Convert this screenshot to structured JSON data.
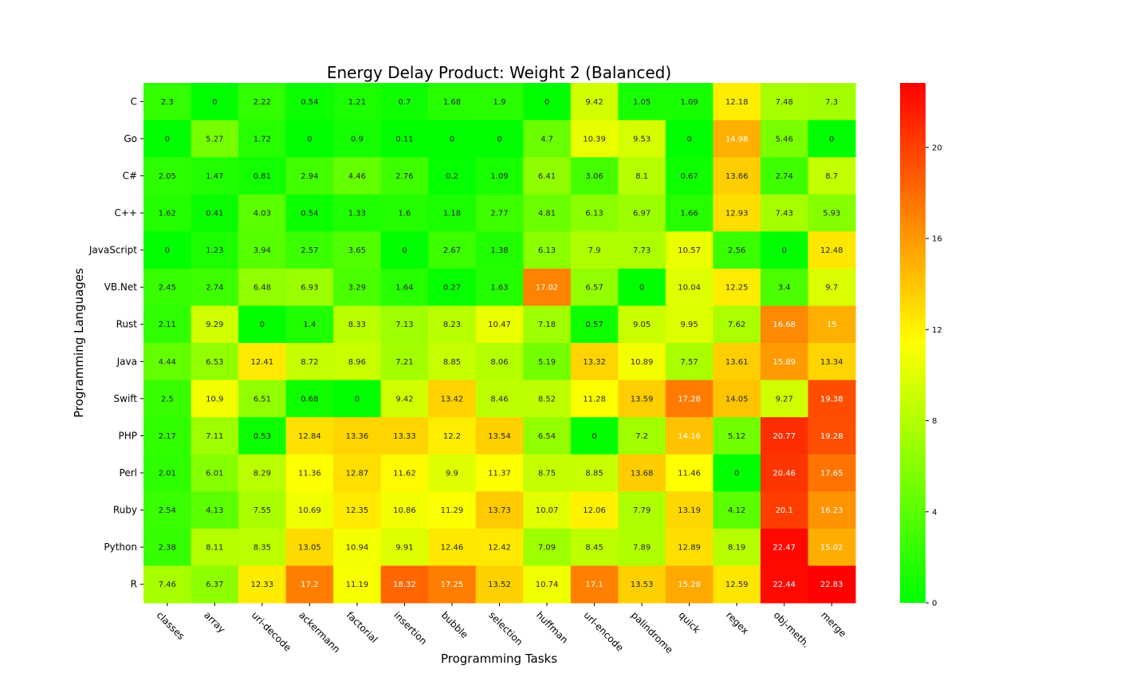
{
  "chart_data": {
    "type": "heatmap",
    "title": "Energy Delay Product: Weight 2 (Balanced)",
    "xlabel": "Programming Tasks",
    "ylabel": "Programming Languages",
    "x_categories": [
      "classes",
      "array",
      "uri-decode",
      "ackermann",
      "factorial",
      "insertion",
      "bubble",
      "selection",
      "huffman",
      "url-encode",
      "palindrome",
      "quick",
      "regex",
      "obj-meth.",
      "merge"
    ],
    "y_categories": [
      "C",
      "Go",
      "C#",
      "C++",
      "JavaScript",
      "VB.Net",
      "Rust",
      "Java",
      "Swift",
      "PHP",
      "Perl",
      "Ruby",
      "Python",
      "R"
    ],
    "values": [
      [
        2.3,
        0,
        2.22,
        0.54,
        1.21,
        0.7,
        1.68,
        1.9,
        0,
        9.42,
        1.05,
        1.09,
        12.18,
        7.48,
        7.3
      ],
      [
        0,
        5.27,
        1.72,
        0,
        0.9,
        0.11,
        0,
        0,
        4.7,
        10.39,
        9.53,
        0,
        14.98,
        5.46,
        0
      ],
      [
        2.05,
        1.47,
        0.81,
        2.94,
        4.46,
        2.76,
        0.2,
        1.09,
        6.41,
        3.06,
        8.1,
        0.67,
        13.66,
        2.74,
        8.7
      ],
      [
        1.62,
        0.41,
        4.03,
        0.54,
        1.33,
        1.6,
        1.18,
        2.77,
        4.81,
        6.13,
        6.97,
        1.66,
        12.93,
        7.43,
        5.93
      ],
      [
        0,
        1.23,
        3.94,
        2.57,
        3.65,
        0,
        2.67,
        1.38,
        6.13,
        7.9,
        7.73,
        10.57,
        2.56,
        0,
        12.48
      ],
      [
        2.45,
        2.74,
        6.48,
        6.93,
        3.29,
        1.64,
        0.27,
        1.63,
        17.02,
        6.57,
        0,
        10.04,
        12.25,
        3.4,
        9.7
      ],
      [
        2.11,
        9.29,
        0,
        1.4,
        8.33,
        7.13,
        8.23,
        10.47,
        7.18,
        0.57,
        9.05,
        9.95,
        7.62,
        16.68,
        15
      ],
      [
        4.44,
        6.53,
        12.41,
        8.72,
        8.96,
        7.21,
        8.85,
        8.06,
        5.19,
        13.32,
        10.89,
        7.57,
        13.61,
        15.89,
        13.34
      ],
      [
        2.5,
        10.9,
        6.51,
        0.68,
        0,
        9.42,
        13.42,
        8.46,
        8.52,
        11.28,
        13.59,
        17.28,
        14.05,
        9.27,
        19.38
      ],
      [
        2.17,
        7.11,
        0.53,
        12.84,
        13.36,
        13.33,
        12.2,
        13.54,
        6.54,
        0,
        7.2,
        14.16,
        5.12,
        20.77,
        19.28
      ],
      [
        2.01,
        6.01,
        8.29,
        11.36,
        12.87,
        11.62,
        9.9,
        11.37,
        8.75,
        8.85,
        13.68,
        11.46,
        0,
        20.46,
        17.65
      ],
      [
        2.54,
        4.13,
        7.55,
        10.69,
        12.35,
        10.86,
        11.29,
        13.73,
        10.07,
        12.06,
        7.79,
        13.19,
        4.12,
        20.1,
        16.23
      ],
      [
        2.38,
        8.11,
        8.35,
        13.05,
        10.94,
        9.91,
        12.46,
        12.42,
        7.09,
        8.45,
        7.89,
        12.89,
        8.19,
        22.47,
        15.02
      ],
      [
        7.46,
        6.37,
        12.33,
        17.2,
        11.19,
        18.32,
        17.25,
        13.52,
        10.74,
        17.1,
        13.53,
        15.28,
        12.59,
        22.44,
        22.83
      ]
    ],
    "colorbar": {
      "min": 0,
      "max": 22.83,
      "ticks": [
        0,
        4,
        8,
        12,
        16,
        20
      ]
    },
    "colormap": [
      "#00ff00",
      "#ffff00",
      "#ff0000"
    ]
  }
}
